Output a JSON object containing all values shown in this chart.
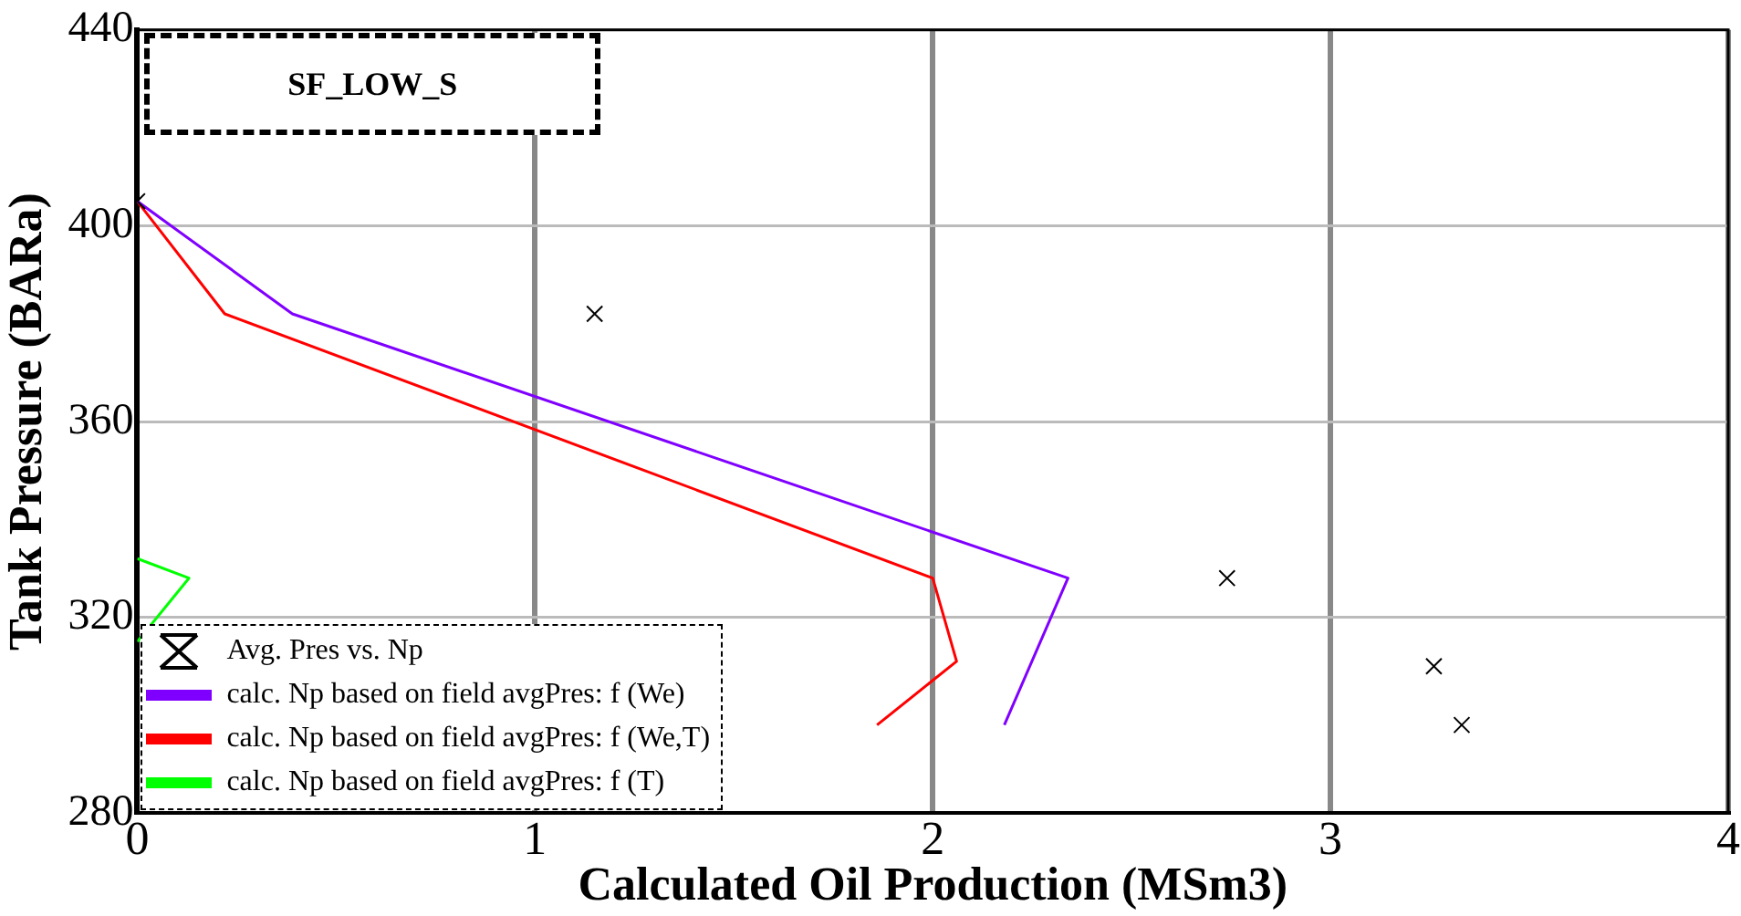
{
  "chart_data": {
    "type": "line",
    "xlabel": "Calculated Oil Production (MSm3)",
    "ylabel": "Tank Pressure (BARa)",
    "annotations": [
      "SF_LOW_S"
    ],
    "xlim": [
      0,
      4
    ],
    "xticks": [
      0,
      1,
      2,
      3,
      4
    ],
    "ylim": [
      280,
      440
    ],
    "yticks": [
      280,
      320,
      360,
      400,
      440
    ],
    "grid": true,
    "legend": "bottom left",
    "line_style": "solid",
    "series": [
      {
        "name": "Avg. Pres vs. Np",
        "type": "scatter",
        "marker": "cross",
        "color": "#000000",
        "x": [
          0,
          1.15,
          2.74,
          3.26,
          3.33
        ],
        "values": [
          405,
          382,
          328,
          310,
          298
        ]
      },
      {
        "name": "calc. Np based on field avgPres: f (We)",
        "marker": "none",
        "color": "#8000ff",
        "x": [
          0,
          0.39,
          2.34,
          2.18
        ],
        "values": [
          405,
          382,
          328,
          298
        ]
      },
      {
        "name": "calc. Np based on field avgPres: f (We,T)",
        "type": "line",
        "marker": "none",
        "color": "#ff0000",
        "x": [
          0,
          0.22,
          2.0,
          2.06,
          1.86
        ],
        "values": [
          405,
          382,
          328,
          311,
          298
        ]
      },
      {
        "name": "calc. Np based on field avgPres: f (T)",
        "type": "line",
        "marker": "none",
        "color": "#00ff00",
        "x": [
          0,
          0.13,
          0
        ],
        "values": [
          332,
          328,
          315
        ]
      }
    ]
  }
}
